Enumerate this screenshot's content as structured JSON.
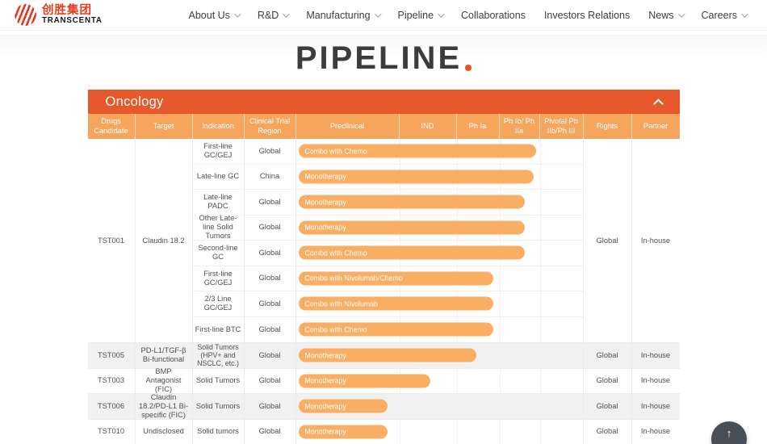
{
  "header": {
    "logo": {
      "cn": "创胜集团",
      "en": "TRANSCENTA"
    },
    "nav": [
      {
        "label": "About Us",
        "caret": true
      },
      {
        "label": "R&D",
        "caret": true
      },
      {
        "label": "Manufacturing",
        "caret": true
      },
      {
        "label": "Pipeline",
        "caret": true
      },
      {
        "label": "Collaborations",
        "caret": false
      },
      {
        "label": "Investors Relations",
        "caret": false
      },
      {
        "label": "News",
        "caret": true
      },
      {
        "label": "Careers",
        "caret": true
      }
    ]
  },
  "page": {
    "title": "PIPELINE"
  },
  "colors": {
    "accent": "#e7582c",
    "table_header": "#f6a55c",
    "bar": "#f9ae63",
    "logo_red": "#e8391f"
  },
  "oncology": {
    "section_title": "Oncology",
    "columns": [
      "Drugs Candidate",
      "Target",
      "Indication",
      "Clinical Trial Region",
      "Preclinical",
      "IND",
      "Ph Ia",
      "Ph Ib/ Ph IIa",
      "Pivotal Ph IIb/Ph III",
      "Rights",
      "Partner"
    ],
    "group": {
      "candidate": "TST001",
      "target": "Claudin 18.2",
      "rights": "Global",
      "partner": "In-house",
      "rows": [
        {
          "indication": "First-line GC/GEJ",
          "region": "Global",
          "label": "Combo with Chemo",
          "bar_width": "83%"
        },
        {
          "indication": "Late-line GC",
          "region": "China",
          "label": "Monotherapy",
          "bar_width": "82%"
        },
        {
          "indication": "Late-line PADC",
          "region": "Global",
          "label": "Monotherapy",
          "bar_width": "79%"
        },
        {
          "indication": "Other Late-line Solid Tumors",
          "region": "Global",
          "label": "Monotherapy",
          "bar_width": "79%"
        },
        {
          "indication": "Second-line GC",
          "region": "Global",
          "label": "Combo with Chemo",
          "bar_width": "79%"
        },
        {
          "indication": "First-line GC/GEJ",
          "region": "Global",
          "label": "Combo with Nivolumab/Chemo",
          "bar_width": "68%"
        },
        {
          "indication": "2/3 Line GC/GEJ",
          "region": "Global",
          "label": "Combo with Nivolumab",
          "bar_width": "68%"
        },
        {
          "indication": "First-line BTC",
          "region": "Global",
          "label": "Combo with Chemo",
          "bar_width": "68%"
        }
      ]
    },
    "rows": [
      {
        "candidate": "TST005",
        "target": "PD-L1/TGF-β Bi-functional",
        "indication": "Solid Tumors (HPV+ and NSCLC, etc.)",
        "region": "Global",
        "label": "Monotherapy",
        "bar_width": "62%",
        "rights": "Global",
        "partner": "In-house"
      },
      {
        "candidate": "TST003",
        "target": "BMP Antagonist (FIC)",
        "indication": "Solid Tumors",
        "region": "Global",
        "label": "Monotherapy",
        "bar_width": "46%",
        "rights": "Global",
        "partner": "In-house"
      },
      {
        "candidate": "TST006",
        "target": "Claudin 18.2/PD-L1 Bi-specific (FIC)",
        "indication": "Solid Tumors",
        "region": "Global",
        "label": "Monotherapy",
        "bar_width": "31%",
        "rights": "Global",
        "partner": "In-house"
      },
      {
        "candidate": "TST010",
        "target": "Undisclosed",
        "indication": "Solid tumors",
        "region": "Global",
        "label": "Monotherapy",
        "bar_width": "31%",
        "rights": "Global",
        "partner": "In-house"
      }
    ]
  },
  "scroll_top": {
    "icon_label": "↑"
  }
}
